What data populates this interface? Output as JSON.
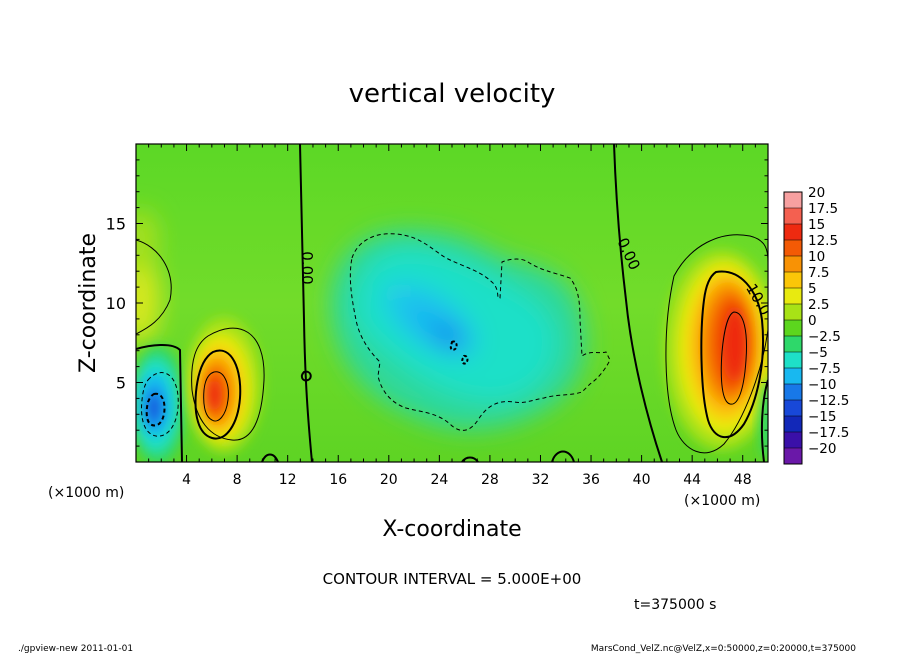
{
  "chart_data": {
    "type": "heatmap",
    "title": "vertical velocity",
    "xlabel": "X-coordinate",
    "ylabel": "Z-coordinate",
    "x_unit_left": "(×1000 m)",
    "x_unit_right": "(×1000 m)",
    "xlim": [
      0,
      50
    ],
    "ylim": [
      0,
      20
    ],
    "x_ticks": [
      "4",
      "8",
      "12",
      "16",
      "20",
      "24",
      "28",
      "32",
      "36",
      "40",
      "44",
      "48"
    ],
    "x_tick_values": [
      4,
      8,
      12,
      16,
      20,
      24,
      28,
      32,
      36,
      40,
      44,
      48
    ],
    "y_ticks": [
      "5",
      "10",
      "15"
    ],
    "y_tick_values": [
      5,
      10,
      15
    ],
    "colorbar": {
      "labels": [
        "20",
        "17.5",
        "15",
        "12.5",
        "10",
        "7.5",
        "5",
        "2.5",
        "0",
        "−2.5",
        "−5",
        "−7.5",
        "−10",
        "−12.5",
        "−15",
        "−17.5",
        "−20"
      ],
      "colors": [
        "#f7a0a0",
        "#f46050",
        "#ee2a10",
        "#f35a05",
        "#f89205",
        "#fbc608",
        "#e8ea10",
        "#a8e216",
        "#5cd61e",
        "#2ed86a",
        "#1ee0c8",
        "#18b8f0",
        "#1878e8",
        "#1848d8",
        "#1228b8",
        "#3a10a8",
        "#6a18a8"
      ]
    },
    "cells": [
      {
        "x": [
          0,
          3.5
        ],
        "z": [
          0,
          7
        ],
        "value": -8
      },
      {
        "x": [
          4.5,
          8
        ],
        "z": [
          1.5,
          7.5
        ],
        "value": 14
      },
      {
        "x": [
          17,
          37
        ],
        "z": [
          2,
          14
        ],
        "value": -5
      },
      {
        "x": [
          43,
          49
        ],
        "z": [
          1.5,
          12
        ],
        "value": 14
      },
      {
        "x": [
          0,
          2
        ],
        "z": [
          8,
          13
        ],
        "value": 6
      }
    ],
    "contour_labels": [
      {
        "text": "0.00",
        "x": 13.3,
        "z": 12.6
      },
      {
        "text": "0.00",
        "x": 38.5,
        "z": 13.2
      },
      {
        "text": "10.0",
        "x": 48.2,
        "z": 10.6
      }
    ],
    "contour_interval_text": "CONTOUR INTERVAL = 5.000E+00",
    "time_text": "t=375000 s"
  },
  "footer": {
    "left": "./gpview-new  2011-01-01",
    "right": "MarsCond_VelZ.nc@VelZ,x=0:50000,z=0:20000,t=375000"
  }
}
